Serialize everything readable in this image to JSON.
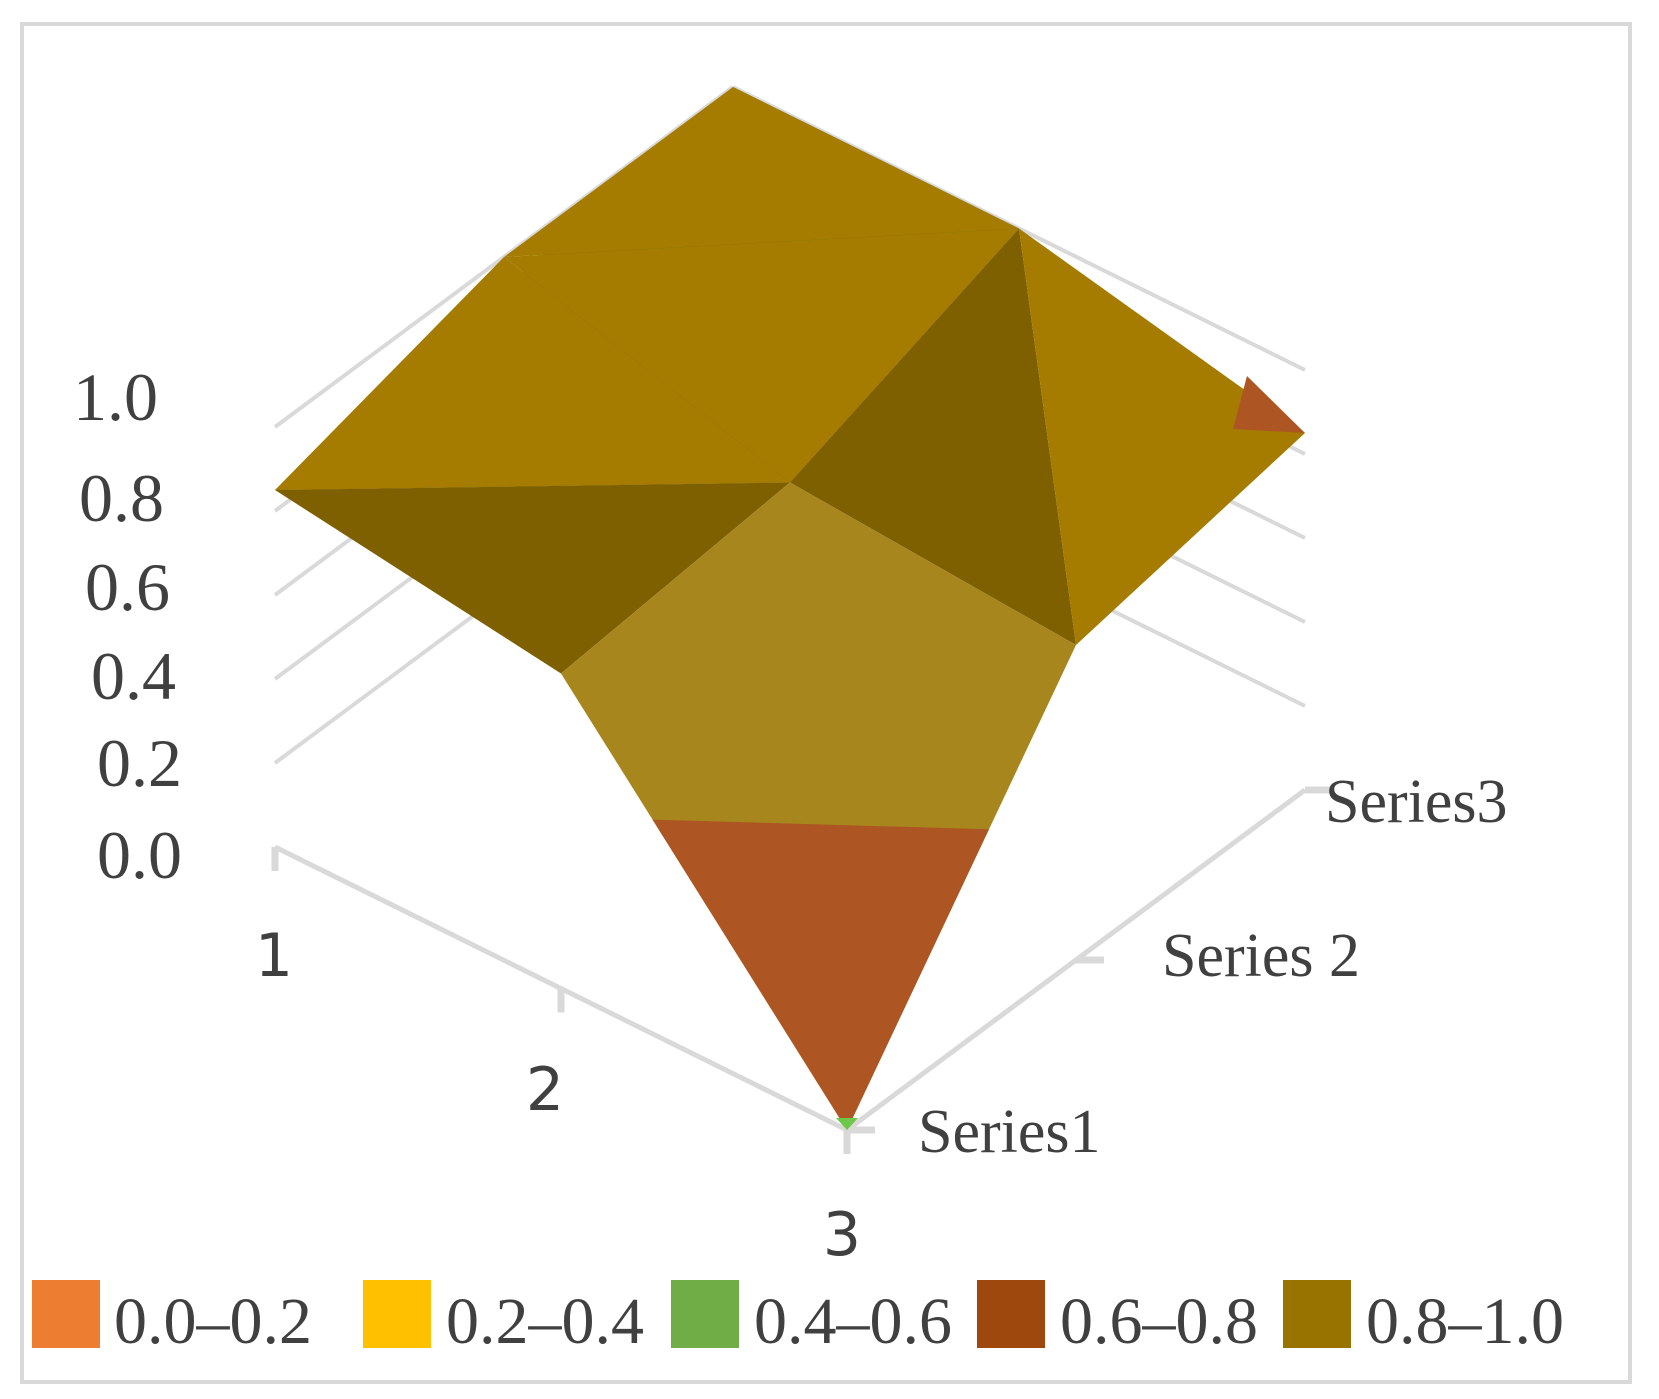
{
  "chart_data": {
    "type": "surface-3d",
    "title": "",
    "categories": [
      "1",
      "2",
      "3"
    ],
    "series_names": [
      "Series1",
      "Series 2",
      "Series3"
    ],
    "z_tick_labels": [
      "0.0",
      "0.2",
      "0.4",
      "0.6",
      "0.8",
      "1.0"
    ],
    "zlim": [
      0,
      1
    ],
    "series": [
      {
        "name": "Series1",
        "values": [
          0.85,
          0.75,
          0.0
        ]
      },
      {
        "name": "Series 2",
        "values": [
          1.0,
          0.8,
          0.75
        ]
      },
      {
        "name": "Series3",
        "values": [
          1.0,
          1.0,
          0.85
        ]
      }
    ],
    "legend": {
      "position": "bottom",
      "items": [
        {
          "label": "0.0–0.2",
          "color": "#ED7D31"
        },
        {
          "label": "0.2–0.4",
          "color": "#FFC000"
        },
        {
          "label": "0.4–0.6",
          "color": "#70AD47"
        },
        {
          "label": "0.6–0.8",
          "color": "#9E480E"
        },
        {
          "label": "0.8–1.0",
          "color": "#997300"
        }
      ]
    },
    "surface_colors": {
      "top_green": "#44652B",
      "gold": "#A67C00",
      "dark_gold": "#7F6000",
      "olive_gold": "#A8861E",
      "rust": "#AD5623",
      "tip_green": "#70C84A"
    },
    "grid": true
  }
}
